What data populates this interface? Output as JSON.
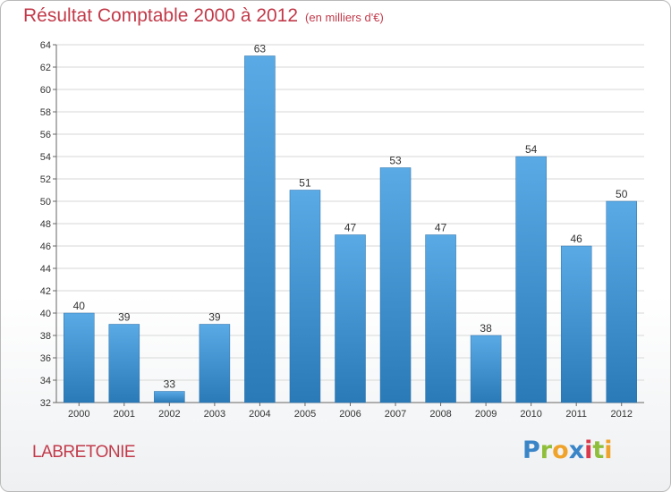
{
  "header": {
    "title": "Résultat Comptable 2000 à 2012",
    "subtitle": "(en milliers d'€)"
  },
  "footer": {
    "commune": "LABRETONIE",
    "brand": "Proxiti"
  },
  "colors": {
    "title": "#c23a4a",
    "bar_top": "#5aaae6",
    "bar_bottom": "#2a7ab8",
    "grid": "#d7d7d7"
  },
  "chart_data": {
    "type": "bar",
    "title": "Résultat Comptable 2000 à 2012",
    "subtitle": "(en milliers d'€)",
    "xlabel": "",
    "ylabel": "",
    "categories": [
      "2000",
      "2001",
      "2002",
      "2003",
      "2004",
      "2005",
      "2006",
      "2007",
      "2008",
      "2009",
      "2010",
      "2011",
      "2012"
    ],
    "values": [
      40,
      39,
      33,
      39,
      63,
      51,
      47,
      53,
      47,
      38,
      54,
      46,
      50
    ],
    "ylim": [
      32,
      64
    ],
    "yticks": [
      32,
      34,
      36,
      38,
      40,
      42,
      44,
      46,
      48,
      50,
      52,
      54,
      56,
      58,
      60,
      62,
      64
    ],
    "grid": true,
    "data_labels": true
  }
}
